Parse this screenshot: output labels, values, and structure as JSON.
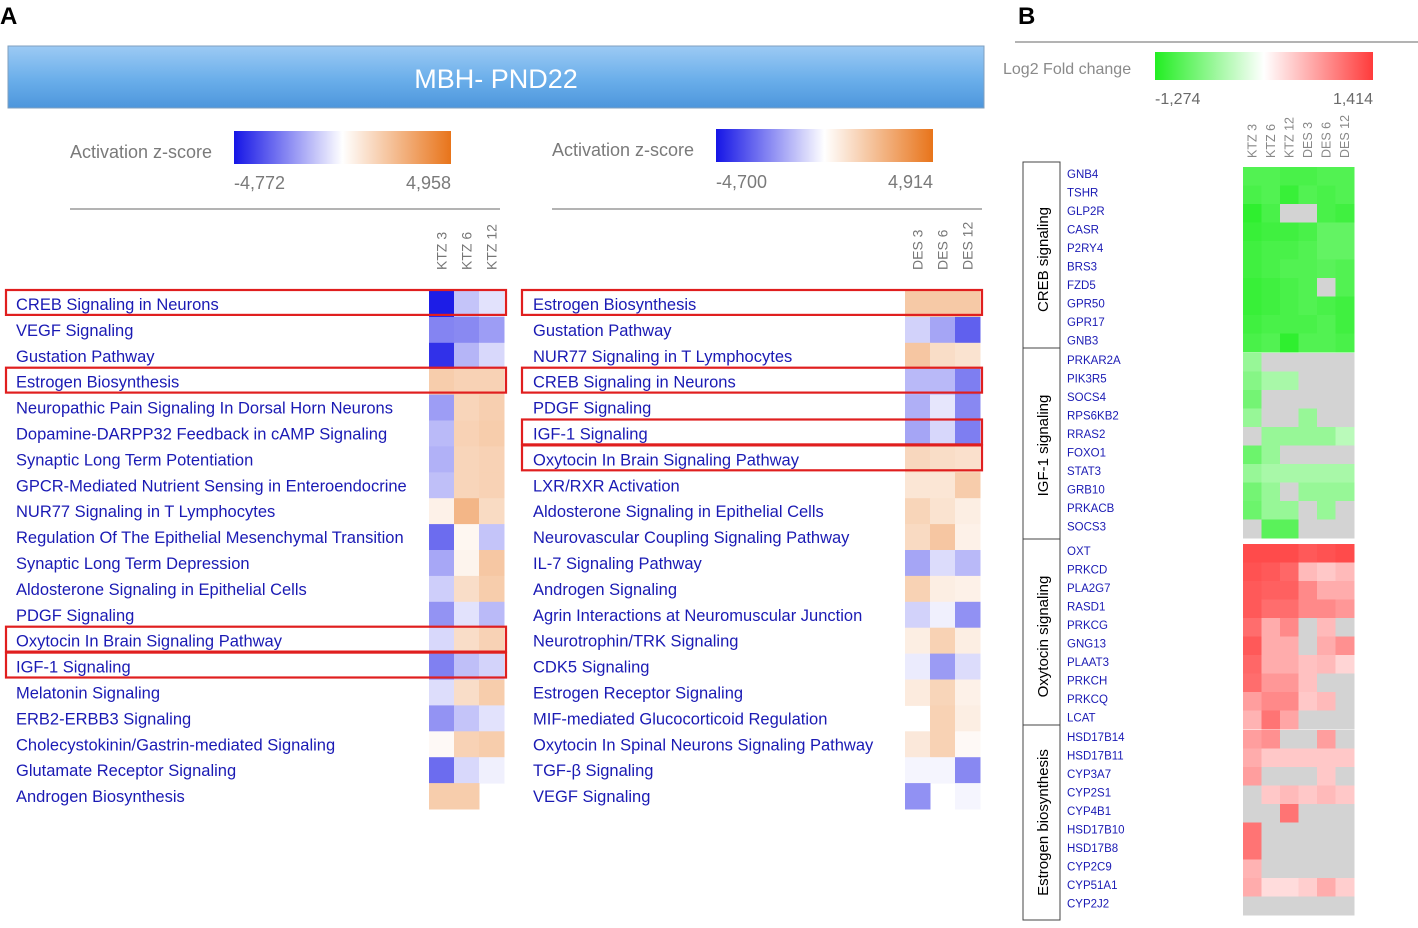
{
  "panels": {
    "a_label": "A",
    "b_label": "B",
    "banner_title": "MBH- PND22"
  },
  "colors": {
    "negative": "#1515e6",
    "positive": "#e8741a",
    "neutral": "#ffffff",
    "missing": "#d3d3d3",
    "fold_down": "#22ee22",
    "fold_up": "#ff3b3b",
    "pathway_text": "#1a1ab4",
    "highlight_box": "#e01f1f",
    "banner": "#6aaeea"
  },
  "chart_data": [
    {
      "type": "heatmap",
      "title": "",
      "legend_label": "Activation z-score",
      "scale": [
        -4.772,
        4.958
      ],
      "scale_labels": [
        "-4,772",
        "4,958"
      ],
      "columns": [
        "KTZ 3",
        "KTZ 6",
        "KTZ 12"
      ],
      "rows": [
        "CREB Signaling in Neurons",
        "VEGF Signaling",
        "Gustation Pathway",
        "Estrogen Biosynthesis",
        "Neuropathic Pain Signaling In Dorsal Horn Neurons",
        "Dopamine-DARPP32 Feedback in cAMP Signaling",
        "Synaptic Long Term Potentiation",
        "GPCR-Mediated Nutrient Sensing in Enteroendocrine",
        "NUR77 Signaling in T Lymphocytes",
        "Regulation Of The Epithelial Mesenchymal Transition",
        "Synaptic Long Term Depression",
        "Aldosterone Signaling in Epithelial Cells",
        "PDGF Signaling",
        "Oxytocin In Brain Signaling Pathway",
        "IGF-1 Signaling",
        "Melatonin Signaling",
        "ERB2-ERBB3 Signaling",
        "Cholecystokinin/Gastrin-mediated Signaling",
        "Glutamate Receptor Signaling",
        "Androgen Biosynthesis"
      ],
      "highlighted_rows": [
        "CREB Signaling in Neurons",
        "Estrogen Biosynthesis",
        "Oxytocin In Brain Signaling Pathway",
        "IGF-1 Signaling"
      ],
      "values": [
        [
          -4.6,
          -1.2,
          -0.6
        ],
        [
          -2.5,
          -2.4,
          -2.0
        ],
        [
          -4.2,
          -1.5,
          -0.8
        ],
        [
          1.8,
          1.6,
          1.6
        ],
        [
          -2.0,
          1.5,
          1.7
        ],
        [
          -1.4,
          1.6,
          1.8
        ],
        [
          -1.6,
          1.5,
          1.6
        ],
        [
          -1.3,
          1.5,
          1.6
        ],
        [
          0.5,
          2.6,
          1.3
        ],
        [
          -3.0,
          0.3,
          -1.2
        ],
        [
          -1.8,
          0.4,
          2.0
        ],
        [
          -1.0,
          1.2,
          1.8
        ],
        [
          -2.2,
          -0.6,
          -1.4
        ],
        [
          -0.8,
          1.2,
          1.6
        ],
        [
          -2.6,
          -1.3,
          -0.9
        ],
        [
          -0.7,
          1.2,
          1.8
        ],
        [
          -2.2,
          -1.2,
          -0.6
        ],
        [
          0.2,
          1.6,
          1.8
        ],
        [
          -3.0,
          -0.8,
          -0.3
        ],
        [
          1.8,
          1.8,
          null
        ]
      ]
    },
    {
      "type": "heatmap",
      "title": "",
      "legend_label": "Activation z-score",
      "scale": [
        -4.7,
        4.914
      ],
      "scale_labels": [
        "-4,700",
        "4,914"
      ],
      "columns": [
        "DES 3",
        "DES 6",
        "DES 12"
      ],
      "rows": [
        "Estrogen Biosynthesis",
        "Gustation Pathway",
        "NUR77 Signaling in T Lymphocytes",
        "CREB Signaling in Neurons",
        "PDGF Signaling",
        "IGF-1 Signaling",
        "Oxytocin In Brain Signaling Pathway",
        "LXR/RXR Activation",
        "Aldosterone Signaling in Epithelial Cells",
        "Neurovascular Coupling Signaling Pathway",
        "IL-7 Signaling Pathway",
        "Androgen Signaling",
        "Agrin Interactions at Neuromuscular Junction",
        "Neurotrophin/TRK Signaling",
        "CDK5 Signaling",
        "Estrogen Receptor Signaling",
        "MIF-mediated Glucocorticoid Regulation",
        "Oxytocin In Spinal Neurons Signaling Pathway",
        "TGF-β Signaling",
        "VEGF Signaling"
      ],
      "highlighted_rows": [
        "Estrogen Biosynthesis",
        "CREB Signaling in Neurons",
        "IGF-1 Signaling",
        "Oxytocin In Brain Signaling Pathway"
      ],
      "values": [
        [
          1.9,
          1.9,
          1.9
        ],
        [
          -0.9,
          -1.8,
          -3.2
        ],
        [
          2.0,
          1.2,
          1.0
        ],
        [
          -1.4,
          -1.4,
          -2.6
        ],
        [
          -1.6,
          -0.5,
          -2.4
        ],
        [
          -1.8,
          -0.8,
          -2.6
        ],
        [
          1.4,
          1.2,
          1.1
        ],
        [
          0.9,
          0.9,
          1.8
        ],
        [
          1.5,
          1.0,
          0.6
        ],
        [
          1.3,
          2.0,
          0.5
        ],
        [
          -1.8,
          -0.7,
          -1.4
        ],
        [
          1.6,
          0.6,
          0.5
        ],
        [
          -0.9,
          -0.3,
          -2.2
        ],
        [
          0.6,
          1.6,
          0.6
        ],
        [
          -0.4,
          -2.0,
          -0.7
        ],
        [
          0.7,
          1.5,
          0.5
        ],
        [
          null,
          1.6,
          0.6
        ],
        [
          0.8,
          1.6,
          0.2
        ],
        [
          -0.2,
          -0.2,
          -2.4
        ],
        [
          -2.2,
          null,
          -0.2
        ]
      ]
    },
    {
      "type": "heatmap",
      "title": "",
      "legend_label": "Log2 Fold change",
      "scale": [
        -1.274,
        1.414
      ],
      "scale_labels": [
        "-1,274",
        "1,414"
      ],
      "columns": [
        "KTZ 3",
        "KTZ 6",
        "KTZ 12",
        "DES 3",
        "DES 6",
        "DES 12"
      ],
      "groups": [
        {
          "name": "CREB signaling",
          "genes": [
            "GNB4",
            "TSHR",
            "GLP2R",
            "CASR",
            "P2RY4",
            "BRS3",
            "FZD5",
            "GPR50",
            "GPR17",
            "GNB3"
          ],
          "values": [
            [
              -1.0,
              -1.0,
              -1.05,
              -1.05,
              -1.0,
              -1.0
            ],
            [
              -1.05,
              -1.0,
              -1.15,
              -1.0,
              -1.05,
              -1.0
            ],
            [
              -1.2,
              -1.05,
              null,
              null,
              -1.05,
              -1.1
            ],
            [
              -1.15,
              -1.1,
              -1.1,
              -1.05,
              -0.9,
              -0.9
            ],
            [
              -1.1,
              -1.05,
              -1.05,
              -1.0,
              -0.9,
              -0.9
            ],
            [
              -1.1,
              -1.05,
              -1.0,
              -1.0,
              -0.95,
              -1.0
            ],
            [
              -1.15,
              -1.1,
              -1.05,
              -1.0,
              null,
              -1.0
            ],
            [
              -1.15,
              -1.1,
              -1.05,
              -1.0,
              -1.05,
              -1.1
            ],
            [
              -1.1,
              -1.05,
              -1.05,
              -1.05,
              -1.0,
              -1.1
            ],
            [
              -1.05,
              -1.0,
              -1.2,
              -1.0,
              -1.0,
              -1.05
            ]
          ]
        },
        {
          "name": "IGF-1 signaling",
          "genes": [
            "PRKAR2A",
            "PIK3R5",
            "SOCS4",
            "RPS6KB2",
            "RRAS2",
            "FOXO1",
            "STAT3",
            "GRB10",
            "PRKACB",
            "SOCS3"
          ],
          "values": [
            [
              -0.6,
              null,
              null,
              null,
              null,
              null
            ],
            [
              -0.7,
              -0.5,
              -0.5,
              null,
              null,
              null
            ],
            [
              -0.8,
              null,
              null,
              null,
              null,
              null
            ],
            [
              -0.6,
              null,
              null,
              -0.6,
              null,
              null
            ],
            [
              null,
              -0.6,
              -0.6,
              -0.6,
              -0.6,
              -0.4
            ],
            [
              -0.85,
              -0.6,
              null,
              null,
              null,
              null
            ],
            [
              -0.6,
              -0.5,
              -0.5,
              -0.5,
              -0.5,
              -0.5
            ],
            [
              -0.8,
              -0.6,
              null,
              -0.6,
              -0.6,
              -0.6
            ],
            [
              -0.85,
              -0.6,
              -0.6,
              null,
              -0.6,
              null
            ],
            [
              null,
              -0.95,
              -0.95,
              null,
              null,
              null
            ]
          ]
        },
        {
          "name": "Oxytocin signaling",
          "genes": [
            "OXT",
            "PRKCD",
            "PLA2G7",
            "RASD1",
            "PRKCG",
            "GNG13",
            "PLAAT3",
            "PRKCH",
            "PRKCQ",
            "LCAT"
          ],
          "values": [
            [
              1.3,
              1.3,
              1.3,
              1.2,
              1.25,
              1.3
            ],
            [
              1.25,
              1.2,
              1.1,
              0.5,
              0.4,
              0.5
            ],
            [
              1.2,
              1.15,
              1.15,
              0.85,
              0.6,
              0.6
            ],
            [
              1.2,
              1.05,
              1.05,
              0.85,
              0.85,
              0.75
            ],
            [
              1.05,
              0.6,
              0.85,
              null,
              0.5,
              null
            ],
            [
              1.2,
              0.6,
              0.6,
              null,
              0.6,
              0.8
            ],
            [
              1.1,
              0.6,
              0.6,
              0.45,
              0.5,
              0.3
            ],
            [
              1.05,
              0.75,
              0.75,
              0.45,
              null,
              null
            ],
            [
              0.7,
              0.85,
              0.85,
              0.4,
              0.5,
              null
            ],
            [
              0.55,
              1.0,
              0.65,
              null,
              null,
              null
            ]
          ]
        },
        {
          "name": "Estrogen biosynthesis",
          "genes": [
            "HSD17B14",
            "HSD17B11",
            "CYP3A7",
            "CYP2S1",
            "CYP4B1",
            "HSD17B10",
            "HSD17B8",
            "CYP2C9",
            "CYP51A1",
            "CYP2J2"
          ],
          "values": [
            [
              0.7,
              0.8,
              null,
              null,
              0.7,
              null
            ],
            [
              0.6,
              0.4,
              0.4,
              0.4,
              0.4,
              0.4
            ],
            [
              0.7,
              null,
              null,
              null,
              0.4,
              null
            ],
            [
              null,
              0.4,
              0.5,
              0.4,
              0.5,
              0.4
            ],
            [
              null,
              null,
              1.0,
              null,
              null,
              null
            ],
            [
              1.0,
              null,
              null,
              null,
              null,
              null
            ],
            [
              1.0,
              null,
              null,
              null,
              null,
              null
            ],
            [
              0.55,
              null,
              null,
              null,
              null,
              null
            ],
            [
              0.6,
              0.25,
              0.25,
              0.35,
              0.6,
              0.35
            ],
            [
              null,
              null,
              null,
              null,
              null,
              null
            ]
          ]
        }
      ]
    }
  ]
}
